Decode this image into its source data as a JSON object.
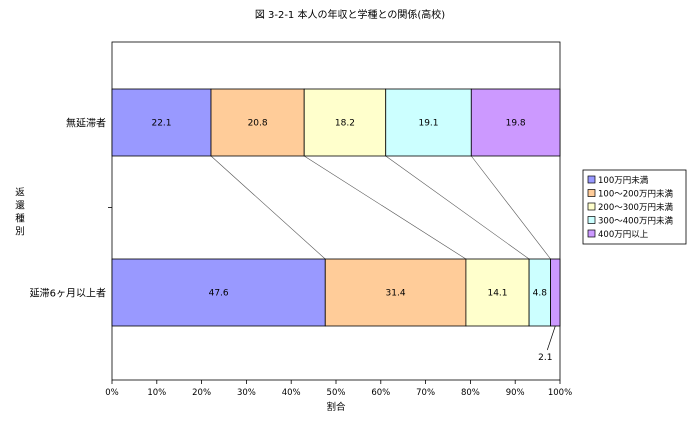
{
  "chart_data": {
    "type": "bar",
    "orientation": "horizontal",
    "stacked": "percent",
    "title": "図 3-2-1  本人の年収と学種との関係(高校)",
    "xlabel": "割合",
    "ylabel": "返還種別",
    "xlim": [
      0,
      100
    ],
    "x_ticks": [
      "0%",
      "10%",
      "20%",
      "30%",
      "40%",
      "50%",
      "60%",
      "70%",
      "80%",
      "90%",
      "100%"
    ],
    "categories": [
      "無延滞者",
      "延滞6ヶ月以上者"
    ],
    "grid": false,
    "series_lines": true,
    "legend_position": "right",
    "series": [
      {
        "name": "100万円未満",
        "color": "#9999ff",
        "values": [
          22.1,
          47.6
        ],
        "labels": [
          "22.1",
          "47.6"
        ]
      },
      {
        "name": "100～200万円未満",
        "color": "#ffcc99",
        "values": [
          20.8,
          31.4
        ],
        "labels": [
          "20.8",
          "31.4"
        ]
      },
      {
        "name": "200～300万円未満",
        "color": "#ffffcc",
        "values": [
          18.2,
          14.1
        ],
        "labels": [
          "18.2",
          "14.1"
        ]
      },
      {
        "name": "300～400万円未満",
        "color": "#ccffff",
        "values": [
          19.1,
          4.8
        ],
        "labels": [
          "19.1",
          "4.8"
        ]
      },
      {
        "name": "400万円以上",
        "color": "#cc99ff",
        "values": [
          19.8,
          2.1
        ],
        "labels": [
          "19.8",
          "2.1"
        ]
      }
    ]
  }
}
